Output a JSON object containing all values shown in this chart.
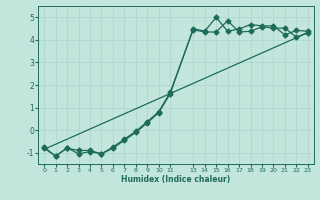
{
  "xlabel": "Humidex (Indice chaleur)",
  "xlim": [
    -0.5,
    23.5
  ],
  "ylim": [
    -1.5,
    5.5
  ],
  "bg_color": "#c2e5dc",
  "grid_color": "#b0d8ce",
  "line_color": "#1e6b5a",
  "yticks": [
    -1,
    0,
    1,
    2,
    3,
    4,
    5
  ],
  "xtick_vals": [
    0,
    1,
    2,
    3,
    4,
    5,
    6,
    7,
    8,
    9,
    10,
    11,
    13,
    14,
    15,
    16,
    17,
    18,
    19,
    20,
    21,
    22,
    23
  ],
  "xtick_labels": [
    "0",
    "1",
    "2",
    "3",
    "4",
    "5",
    "6",
    "7",
    "8",
    "9",
    "10",
    "11",
    "13",
    "14",
    "15",
    "16",
    "17",
    "18",
    "19",
    "20",
    "21",
    "22",
    "23"
  ],
  "line1_x": [
    0,
    1,
    2,
    3,
    4,
    5,
    6,
    7,
    8,
    9,
    10,
    11,
    13,
    14,
    15,
    16,
    17,
    18,
    19,
    20,
    21,
    22,
    23
  ],
  "line1_y": [
    -0.8,
    -1.15,
    -0.8,
    -0.9,
    -0.9,
    -1.05,
    -0.75,
    -0.4,
    -0.05,
    0.38,
    0.82,
    1.68,
    4.45,
    4.35,
    4.35,
    4.85,
    4.35,
    4.38,
    4.58,
    4.52,
    4.52,
    4.12,
    4.32
  ],
  "line2_x": [
    0,
    1,
    2,
    3,
    4,
    5,
    6,
    7,
    8,
    9,
    10,
    11,
    13,
    14,
    15,
    16,
    17,
    18,
    19,
    20,
    21,
    22,
    23
  ],
  "line2_y": [
    -0.75,
    -1.15,
    -0.78,
    -1.05,
    -0.95,
    -1.05,
    -0.8,
    -0.45,
    -0.1,
    0.32,
    0.78,
    1.62,
    4.5,
    4.38,
    5.0,
    4.38,
    4.48,
    4.68,
    4.62,
    4.62,
    4.22,
    4.42,
    4.38
  ],
  "line3_x": [
    0,
    23
  ],
  "line3_y": [
    -0.85,
    4.32
  ],
  "markersize": 2.5,
  "linewidth": 0.9
}
